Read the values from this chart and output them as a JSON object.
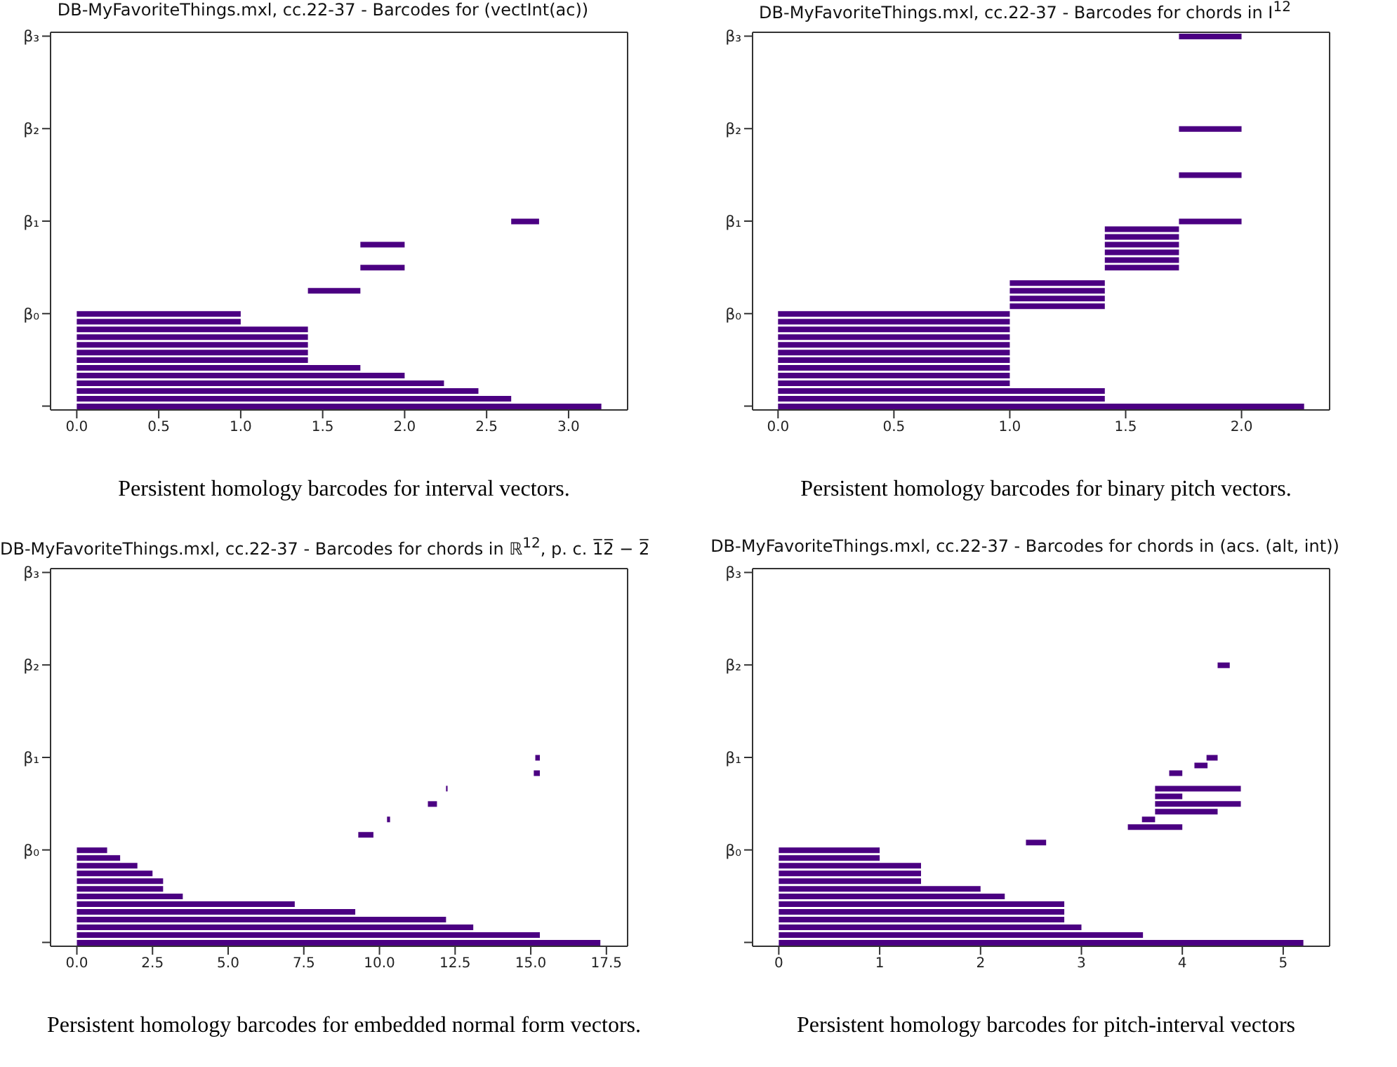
{
  "chart_data": [
    {
      "type": "bar",
      "orientation": "horizontal",
      "title": "DB-MyFavoriteThings.mxl, cc.22-37 - Barcodes for (vectInt(ac))",
      "color": "#4b0082",
      "categories": [
        "β₃",
        null,
        null,
        null,
        null,
        null,
        null,
        null,
        null,
        null,
        null,
        null,
        "β₂",
        null,
        null,
        null,
        null,
        null,
        null,
        null,
        null,
        null,
        null,
        null,
        "β₁",
        null,
        null,
        null,
        null,
        null,
        null,
        null,
        null,
        null,
        null,
        null,
        "β₀",
        null,
        null,
        null,
        null,
        null,
        null,
        null,
        null,
        null,
        null,
        null,
        null
      ],
      "values": [
        null,
        null,
        null,
        null,
        null,
        null,
        null,
        null,
        null,
        null,
        null,
        null,
        null,
        null,
        null,
        null,
        null,
        null,
        null,
        null,
        null,
        null,
        null,
        null,
        0.17,
        null,
        null,
        0.27,
        null,
        null,
        0.27,
        null,
        null,
        0.32,
        null,
        null,
        1.0,
        1.0,
        1.41,
        1.41,
        1.41,
        1.41,
        1.41,
        1.73,
        2.0,
        2.24,
        2.45,
        2.65,
        3.2
      ],
      "base": [
        null,
        null,
        null,
        null,
        null,
        null,
        null,
        null,
        null,
        null,
        null,
        null,
        null,
        null,
        null,
        null,
        null,
        null,
        null,
        null,
        null,
        null,
        null,
        null,
        2.65,
        null,
        null,
        1.73,
        null,
        null,
        1.73,
        null,
        null,
        1.41,
        null,
        null,
        0,
        0,
        0,
        0,
        0,
        0,
        0,
        0,
        0,
        0,
        0,
        0,
        0
      ],
      "xlim": [
        -0.16,
        3.36
      ],
      "xticks": [
        {
          "value": 0,
          "label": "0.0"
        },
        {
          "value": 0.5,
          "label": "0.5"
        },
        {
          "value": 1,
          "label": "1.0"
        },
        {
          "value": 1.5,
          "label": "1.5"
        },
        {
          "value": 2,
          "label": "2.0"
        },
        {
          "value": 2.5,
          "label": "2.5"
        },
        {
          "value": 3,
          "label": "3.0"
        }
      ],
      "annotations": [
        "Persistent homology barcodes for interval vectors."
      ]
    },
    {
      "type": "bar",
      "orientation": "horizontal",
      "title": "DB-MyFavoriteThings.mxl, cc.22-37 - Barcodes for chords in I$^{12}$",
      "color": "#4b0082",
      "categories": [
        "β₃",
        null,
        null,
        null,
        null,
        null,
        null,
        null,
        null,
        null,
        null,
        null,
        "β₂",
        null,
        null,
        null,
        null,
        null,
        null,
        null,
        null,
        null,
        null,
        null,
        "β₁",
        null,
        null,
        null,
        null,
        null,
        null,
        null,
        null,
        null,
        null,
        null,
        "β₀",
        null,
        null,
        null,
        null,
        null,
        null,
        null,
        null,
        null,
        null,
        null,
        null
      ],
      "values": [
        0.27,
        null,
        null,
        null,
        null,
        null,
        null,
        null,
        null,
        null,
        null,
        null,
        0.27,
        null,
        null,
        null,
        null,
        null,
        0.27,
        null,
        null,
        null,
        null,
        null,
        0.27,
        0.32,
        0.32,
        0.32,
        0.32,
        0.32,
        0.32,
        null,
        0.41,
        0.41,
        0.41,
        0.41,
        1.0,
        1.0,
        1.0,
        1.0,
        1.0,
        1.0,
        1.0,
        1.0,
        1.0,
        1.0,
        1.41,
        1.41,
        2.27
      ],
      "base": [
        1.73,
        null,
        null,
        null,
        null,
        null,
        null,
        null,
        null,
        null,
        null,
        null,
        1.73,
        null,
        null,
        null,
        null,
        null,
        1.73,
        null,
        null,
        null,
        null,
        null,
        1.73,
        1.41,
        1.41,
        1.41,
        1.41,
        1.41,
        1.41,
        null,
        1.0,
        1.0,
        1.0,
        1.0,
        0,
        0,
        0,
        0,
        0,
        0,
        0,
        0,
        0,
        0,
        0,
        0,
        0
      ],
      "xlim": [
        -0.11,
        2.38
      ],
      "xticks": [
        {
          "value": 0,
          "label": "0.0"
        },
        {
          "value": 0.5,
          "label": "0.5"
        },
        {
          "value": 1,
          "label": "1.0"
        },
        {
          "value": 1.5,
          "label": "1.5"
        },
        {
          "value": 2,
          "label": "2.0"
        }
      ],
      "annotations": [
        "Persistent homology barcodes for binary pitch vectors."
      ]
    },
    {
      "type": "bar",
      "orientation": "horizontal",
      "title": "DB-MyFavoriteThings.mxl, cc.22-37 - Barcodes for chords in ℝ$^{12}$, p. c. 1̅2̅ − 2̅",
      "color": "#4b0082",
      "categories": [
        "β₃",
        null,
        null,
        null,
        null,
        null,
        null,
        null,
        null,
        null,
        null,
        null,
        "β₂",
        null,
        null,
        null,
        null,
        null,
        null,
        null,
        null,
        null,
        null,
        null,
        "β₁",
        null,
        null,
        null,
        null,
        null,
        null,
        null,
        null,
        null,
        null,
        null,
        "β₀",
        null,
        null,
        null,
        null,
        null,
        null,
        null,
        null,
        null,
        null,
        null,
        null
      ],
      "values": [
        null,
        null,
        null,
        null,
        null,
        null,
        null,
        null,
        null,
        null,
        null,
        null,
        null,
        null,
        null,
        null,
        null,
        null,
        null,
        null,
        null,
        null,
        null,
        null,
        0.15,
        null,
        0.2,
        null,
        0.05,
        null,
        0.3,
        null,
        0.1,
        null,
        0.5,
        null,
        1.0,
        1.43,
        2.0,
        2.5,
        2.85,
        2.85,
        3.5,
        7.2,
        9.2,
        12.2,
        13.1,
        15.3,
        17.3
      ],
      "base": [
        null,
        null,
        null,
        null,
        null,
        null,
        null,
        null,
        null,
        null,
        null,
        null,
        null,
        null,
        null,
        null,
        null,
        null,
        null,
        null,
        null,
        null,
        null,
        null,
        15.15,
        null,
        15.1,
        null,
        12.2,
        null,
        11.6,
        null,
        10.25,
        null,
        9.3,
        null,
        0,
        0,
        0,
        0,
        0,
        0,
        0,
        0,
        0,
        0,
        0,
        0,
        0
      ],
      "xlim": [
        -0.87,
        18.2
      ],
      "xticks": [
        {
          "value": 0,
          "label": "0.0"
        },
        {
          "value": 2.5,
          "label": "2.5"
        },
        {
          "value": 5,
          "label": "5.0"
        },
        {
          "value": 7.5,
          "label": "7.5"
        },
        {
          "value": 10,
          "label": "10.0"
        },
        {
          "value": 12.5,
          "label": "12.5"
        },
        {
          "value": 15,
          "label": "15.0"
        },
        {
          "value": 17.5,
          "label": "17.5"
        }
      ],
      "annotations": [
        "Persistent homology barcodes for embedded normal form vectors."
      ]
    },
    {
      "type": "bar",
      "orientation": "horizontal",
      "title": "DB-MyFavoriteThings.mxl, cc.22-37 - Barcodes for chords in (acs. (alt, int))",
      "color": "#4b0082",
      "categories": [
        "β₃",
        null,
        null,
        null,
        null,
        null,
        null,
        null,
        null,
        null,
        null,
        null,
        "β₂",
        null,
        null,
        null,
        null,
        null,
        null,
        null,
        null,
        null,
        null,
        null,
        "β₁",
        null,
        null,
        null,
        null,
        null,
        null,
        null,
        null,
        null,
        null,
        null,
        "β₀",
        null,
        null,
        null,
        null,
        null,
        null,
        null,
        null,
        null,
        null,
        null,
        null
      ],
      "values": [
        null,
        null,
        null,
        null,
        null,
        null,
        null,
        null,
        null,
        null,
        null,
        null,
        0.12,
        null,
        null,
        null,
        null,
        null,
        null,
        null,
        null,
        null,
        null,
        null,
        0.11,
        0.13,
        0.13,
        null,
        0.85,
        0.27,
        0.85,
        0.62,
        0.13,
        0.54,
        null,
        0.2,
        1.0,
        1.0,
        1.41,
        1.41,
        1.41,
        2.0,
        2.24,
        2.83,
        2.83,
        2.83,
        3.0,
        3.61,
        5.2
      ],
      "base": [
        null,
        null,
        null,
        null,
        null,
        null,
        null,
        null,
        null,
        null,
        null,
        null,
        4.35,
        null,
        null,
        null,
        null,
        null,
        null,
        null,
        null,
        null,
        null,
        null,
        4.24,
        4.12,
        3.87,
        null,
        3.73,
        3.73,
        3.73,
        3.73,
        3.6,
        3.46,
        null,
        2.45,
        0,
        0,
        0,
        0,
        0,
        0,
        0,
        0,
        0,
        0,
        0,
        0,
        0
      ],
      "xlim": [
        -0.26,
        5.46
      ],
      "xticks": [
        0,
        1,
        2,
        3,
        4,
        5
      ],
      "annotations": [
        "Persistent homology barcodes for pitch-interval vectors"
      ]
    }
  ]
}
